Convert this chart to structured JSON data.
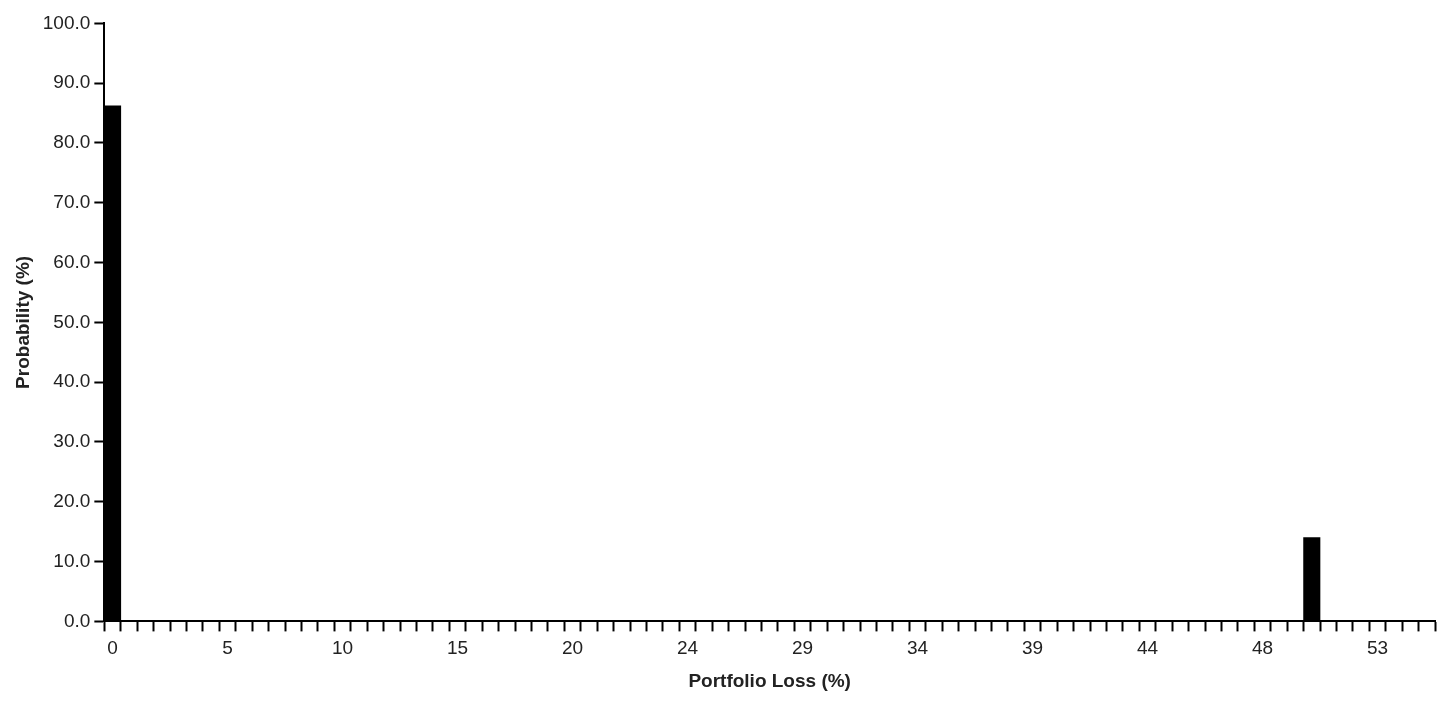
{
  "chart_data": {
    "type": "bar",
    "xlabel": "Portfolio Loss (%)",
    "ylabel": "Probability (%)",
    "categories": [
      "0",
      null,
      null,
      null,
      null,
      null,
      null,
      "5",
      null,
      null,
      null,
      null,
      null,
      null,
      "10",
      null,
      null,
      null,
      null,
      null,
      null,
      "15",
      null,
      null,
      null,
      null,
      null,
      null,
      "20",
      null,
      null,
      null,
      null,
      null,
      null,
      "24",
      null,
      null,
      null,
      null,
      null,
      null,
      "29",
      null,
      null,
      null,
      null,
      null,
      null,
      "34",
      null,
      null,
      null,
      null,
      null,
      null,
      "39",
      null,
      null,
      null,
      null,
      null,
      null,
      "44",
      null,
      null,
      null,
      null,
      null,
      null,
      "48",
      null,
      null,
      null,
      null,
      null,
      null,
      "53",
      null,
      null,
      null
    ],
    "values": [
      86.2,
      0,
      0,
      0,
      0,
      0,
      0,
      0,
      0,
      0,
      0,
      0,
      0,
      0,
      0,
      0,
      0,
      0,
      0,
      0,
      0,
      0,
      0,
      0,
      0,
      0,
      0,
      0,
      0,
      0,
      0,
      0,
      0,
      0,
      0,
      0,
      0,
      0,
      0,
      0,
      0,
      0,
      0,
      0,
      0,
      0,
      0,
      0,
      0,
      0,
      0,
      0,
      0,
      0,
      0,
      0,
      0,
      0,
      0,
      0,
      0,
      0,
      0,
      0,
      0,
      0,
      0,
      0,
      0,
      0,
      0,
      0,
      0,
      14.0,
      0,
      0,
      0,
      0,
      0,
      0,
      0
    ],
    "color": "#000000",
    "ylim": [
      0,
      100
    ],
    "yticks": [
      {
        "value": 0,
        "label": "0.0"
      },
      {
        "value": 10,
        "label": "10.0"
      },
      {
        "value": 20,
        "label": "20.0"
      },
      {
        "value": 30,
        "label": "30.0"
      },
      {
        "value": 40,
        "label": "40.0"
      },
      {
        "value": 50,
        "label": "50.0"
      },
      {
        "value": 60,
        "label": "60.0"
      },
      {
        "value": 70,
        "label": "70.0"
      },
      {
        "value": 80,
        "label": "80.0"
      },
      {
        "value": 90,
        "label": "90.0"
      },
      {
        "value": 100,
        "label": "100.0"
      }
    ],
    "grid": false,
    "legend": false
  }
}
